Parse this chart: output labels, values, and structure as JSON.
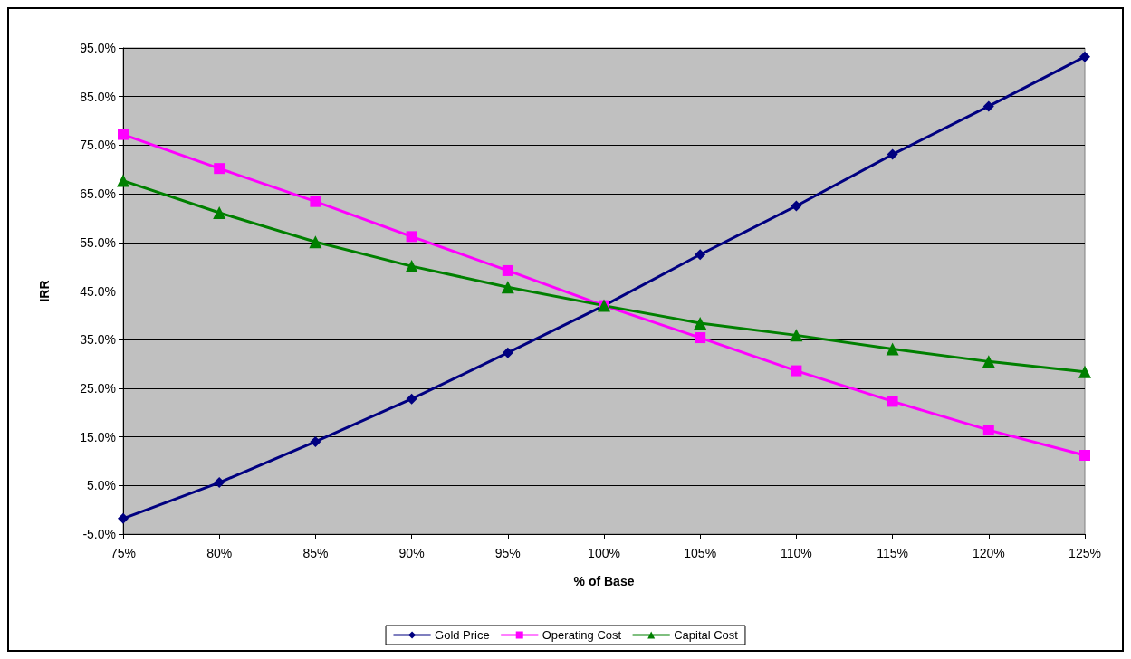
{
  "chart_data": {
    "type": "line",
    "xlabel": "% of Base",
    "ylabel": "IRR",
    "categories": [
      "75%",
      "80%",
      "85%",
      "90%",
      "95%",
      "100%",
      "105%",
      "110%",
      "115%",
      "120%",
      "125%"
    ],
    "series": [
      {
        "name": "Gold Price",
        "color": "#000080",
        "marker": "diamond",
        "values": [
          -1.8,
          5.6,
          14.0,
          22.8,
          32.3,
          42.0,
          52.5,
          62.5,
          73.1,
          83.0,
          93.2
        ]
      },
      {
        "name": "Operating Cost",
        "color": "#ff00ff",
        "marker": "square",
        "values": [
          77.2,
          70.2,
          63.4,
          56.2,
          49.2,
          42.0,
          35.4,
          28.6,
          22.3,
          16.4,
          11.2
        ]
      },
      {
        "name": "Capital Cost",
        "color": "#008000",
        "marker": "triangle",
        "values": [
          67.7,
          61.1,
          55.1,
          50.1,
          45.8,
          42.0,
          38.4,
          35.9,
          33.1,
          30.5,
          28.4
        ]
      }
    ],
    "ylim": [
      -5,
      95
    ],
    "yticks": [
      {
        "value": -5,
        "label": "-5.0%"
      },
      {
        "value": 5,
        "label": "5.0%"
      },
      {
        "value": 15,
        "label": "15.0%"
      },
      {
        "value": 25,
        "label": "25.0%"
      },
      {
        "value": 35,
        "label": "35.0%"
      },
      {
        "value": 45,
        "label": "45.0%"
      },
      {
        "value": 55,
        "label": "55.0%"
      },
      {
        "value": 65,
        "label": "65.0%"
      },
      {
        "value": 75,
        "label": "75.0%"
      },
      {
        "value": 85,
        "label": "85.0%"
      },
      {
        "value": 95,
        "label": "95.0%"
      }
    ],
    "grid": "y",
    "legend": "bottom",
    "line_style": "solid"
  }
}
